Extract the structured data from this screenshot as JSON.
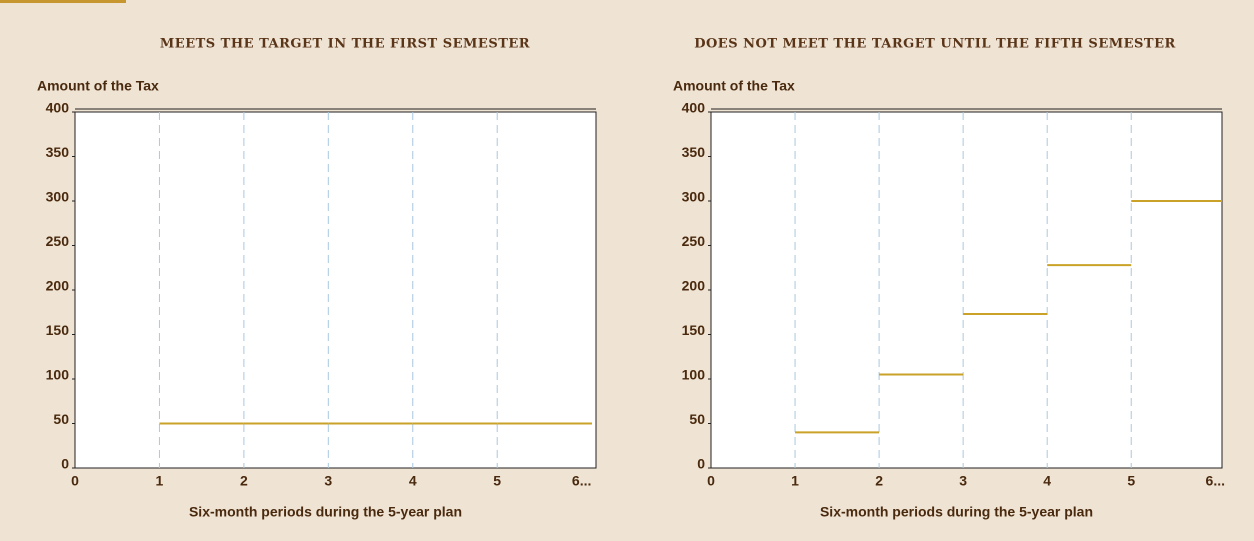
{
  "chart_data": [
    {
      "type": "step",
      "title": "MEETS THE TARGET IN THE FIRST SEMESTER",
      "y_label": "Amount of the Tax",
      "x_label": "Six-month periods during the 5-year plan",
      "x": [
        1,
        2,
        3,
        4,
        5
      ],
      "values": [
        50,
        50,
        50,
        50,
        50
      ],
      "color": "#c9a227",
      "xlim": [
        0,
        6.17
      ],
      "xticks": [
        0,
        1,
        2,
        3,
        4,
        5,
        {
          "value": 6,
          "label": "6..."
        }
      ],
      "ylim": [
        0,
        400
      ],
      "yticks": [
        0,
        50,
        100,
        150,
        200,
        250,
        300,
        350,
        400
      ],
      "grid": true
    },
    {
      "type": "step",
      "title": "DOES NOT MEET THE TARGET UNTIL THE FIFTH SEMESTER",
      "y_label": "Amount of the Tax",
      "x_label": "Six-month periods during the 5-year plan",
      "x": [
        1,
        2,
        3,
        4,
        5
      ],
      "values": [
        40,
        105,
        173,
        228,
        300
      ],
      "color": "#c9a227",
      "xlim": [
        0,
        6.08
      ],
      "xticks": [
        0,
        1,
        2,
        3,
        4,
        5,
        {
          "value": 6,
          "label": "6..."
        }
      ],
      "ylim": [
        0,
        400
      ],
      "yticks": [
        0,
        50,
        100,
        150,
        200,
        250,
        300,
        350,
        400
      ],
      "grid": true
    }
  ]
}
